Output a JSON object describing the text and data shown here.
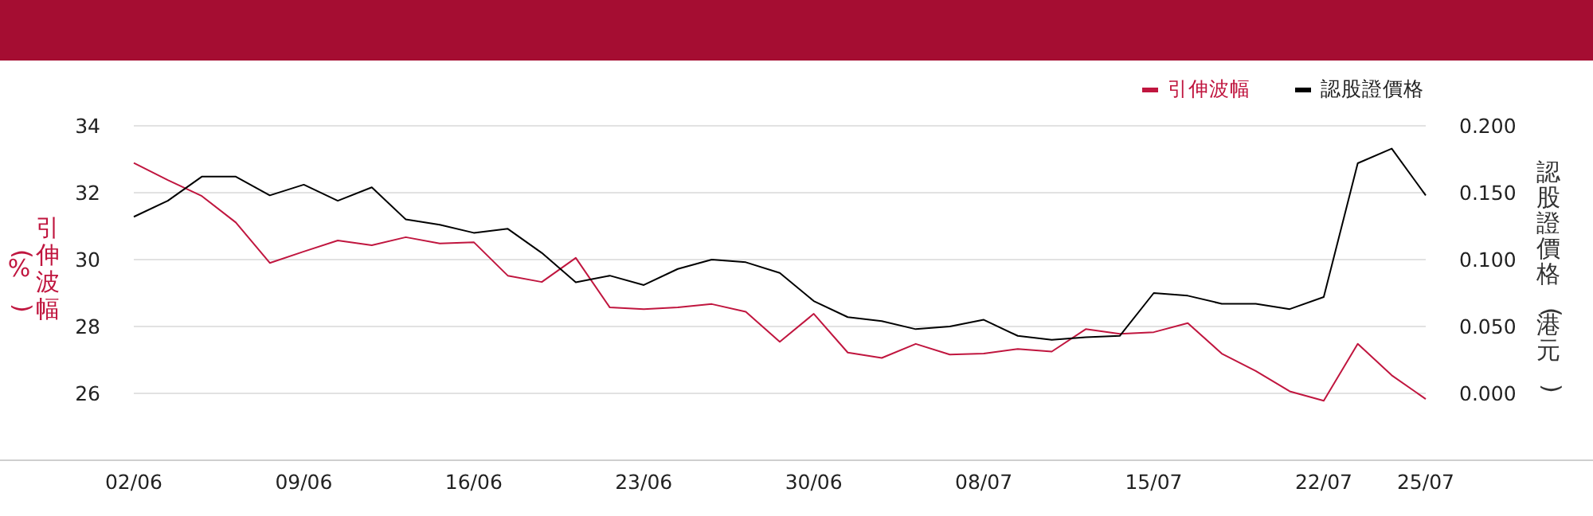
{
  "chart_data": {
    "type": "line",
    "categories": [
      "02/06",
      null,
      null,
      null,
      null,
      "09/06",
      null,
      null,
      null,
      null,
      "16/06",
      null,
      null,
      null,
      null,
      "23/06",
      null,
      null,
      null,
      null,
      "30/06",
      null,
      null,
      null,
      null,
      "08/07",
      null,
      null,
      null,
      null,
      "15/07",
      null,
      null,
      null,
      null,
      "22/07",
      null,
      null,
      "25/07"
    ],
    "series": [
      {
        "name": "引伸波幅",
        "color": "#c0163f",
        "values": [
          32.89,
          32.38,
          31.9,
          31.11,
          29.9,
          30.24,
          30.57,
          30.43,
          30.67,
          30.48,
          30.52,
          29.52,
          29.33,
          30.05,
          28.57,
          28.52,
          28.57,
          28.67,
          28.44,
          27.54,
          28.38,
          27.22,
          27.06,
          27.48,
          27.16,
          27.19,
          27.33,
          27.25,
          27.92,
          27.78,
          27.83,
          28.1,
          27.19,
          26.67,
          26.06,
          25.78,
          27.48,
          26.54,
          25.83
        ]
      },
      {
        "name": "認股證價格",
        "color": "#000000",
        "axis": "y2",
        "values": [
          0.132,
          0.144,
          0.162,
          0.162,
          0.148,
          0.156,
          0.144,
          0.154,
          0.13,
          0.126,
          0.12,
          0.123,
          0.105,
          0.083,
          0.088,
          0.081,
          0.093,
          0.1,
          0.098,
          0.09,
          0.069,
          0.057,
          0.054,
          0.048,
          0.05,
          0.055,
          0.043,
          0.04,
          0.042,
          0.043,
          0.075,
          0.073,
          0.067,
          0.067,
          0.063,
          0.072,
          0.172,
          0.183,
          0.148
        ]
      }
    ],
    "ylabel": "引伸波幅(%)",
    "y2label": "認股證價格(港元)",
    "ylim": [
      24,
      34
    ],
    "yticks": [
      26,
      28,
      30,
      32,
      34
    ],
    "y2lim": [
      -0.05,
      0.2
    ],
    "y2ticks": [
      {
        "value": 0,
        "label": "0.000"
      },
      {
        "value": 0.05,
        "label": "0.050"
      },
      {
        "value": 0.1,
        "label": "0.100"
      },
      {
        "value": 0.15,
        "label": "0.150"
      },
      {
        "value": 0.2,
        "label": "0.200"
      }
    ],
    "grid": "y",
    "legend": "top right",
    "marker": "none",
    "line_style": "solid"
  }
}
